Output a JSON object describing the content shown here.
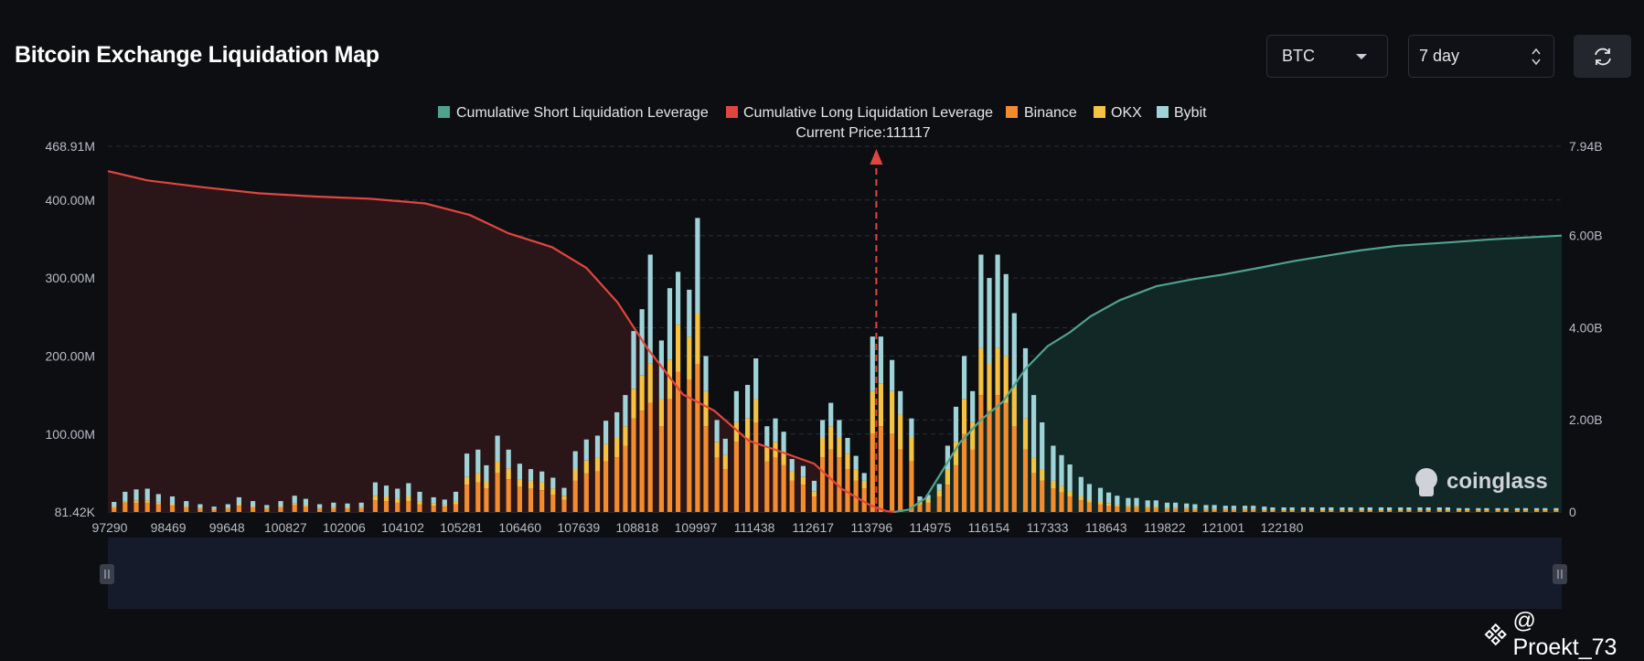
{
  "header": {
    "title": "Bitcoin Exchange Liquidation Map",
    "asset_select": "BTC",
    "period_select": "7 day"
  },
  "watermark": {
    "handle": "@ Proekt_73"
  },
  "colors": {
    "short": "#4fa38e",
    "long": "#e0463e",
    "binance": "#f28c2e",
    "okx": "#f5c242",
    "bybit": "#9fd3d8",
    "background": "#0c0e12"
  },
  "chart_data": {
    "type": "bar",
    "legend": [
      "Cumulative Short Liquidation Leverage",
      "Cumulative Long Liquidation Leverage",
      "Binance",
      "OKX",
      "Bybit"
    ],
    "legend_position": "top-center",
    "current_price_label": "Current Price:111117",
    "current_price": 111117,
    "brand": "coinglass",
    "y_left_ticks": [
      "468.91M",
      "400.00M",
      "300.00M",
      "200.00M",
      "100.00M",
      "81.42K"
    ],
    "y_left_range": [
      0.08142,
      468.91
    ],
    "y_right_ticks": [
      "7.94B",
      "6.00B",
      "4.00B",
      "2.00B",
      "0"
    ],
    "y_right_range": [
      0,
      7.94
    ],
    "x_tick_labels": [
      "97290",
      "98469",
      "99648",
      "100827",
      "102006",
      "104102",
      "105281",
      "106460",
      "107639",
      "108818",
      "109997",
      "111438",
      "112617",
      "113796",
      "114975",
      "116154",
      "117333",
      "118643",
      "119822",
      "121001",
      "122180"
    ],
    "x_range": [
      97290,
      123450
    ],
    "bar_units": "M",
    "bars": [
      [
        97400,
        5,
        2,
        6
      ],
      [
        97600,
        12,
        2,
        12
      ],
      [
        97800,
        12,
        3,
        14
      ],
      [
        98000,
        12,
        3,
        15
      ],
      [
        98200,
        10,
        2,
        11
      ],
      [
        98450,
        8,
        2,
        10
      ],
      [
        98700,
        6,
        1,
        7
      ],
      [
        98950,
        4,
        1,
        5
      ],
      [
        99200,
        3,
        1,
        3
      ],
      [
        99450,
        4,
        1,
        5
      ],
      [
        99650,
        8,
        2,
        9
      ],
      [
        99900,
        6,
        1,
        7
      ],
      [
        100150,
        4,
        1,
        4
      ],
      [
        100400,
        6,
        1,
        7
      ],
      [
        100650,
        9,
        2,
        10
      ],
      [
        100850,
        7,
        2,
        8
      ],
      [
        101100,
        4,
        1,
        5
      ],
      [
        101350,
        5,
        1,
        6
      ],
      [
        101600,
        5,
        1,
        5
      ],
      [
        101850,
        5,
        1,
        6
      ],
      [
        102100,
        15,
        6,
        17
      ],
      [
        102300,
        14,
        6,
        14
      ],
      [
        102500,
        12,
        5,
        13
      ],
      [
        102700,
        14,
        6,
        17
      ],
      [
        102900,
        10,
        4,
        12
      ],
      [
        103150,
        8,
        3,
        8
      ],
      [
        103350,
        7,
        2,
        7
      ],
      [
        103550,
        10,
        4,
        12
      ],
      [
        103750,
        35,
        10,
        30
      ],
      [
        103950,
        38,
        12,
        30
      ],
      [
        104100,
        30,
        10,
        20
      ],
      [
        104300,
        50,
        15,
        33
      ],
      [
        104500,
        42,
        14,
        24
      ],
      [
        104700,
        32,
        10,
        20
      ],
      [
        104900,
        30,
        10,
        15
      ],
      [
        105100,
        28,
        10,
        14
      ],
      [
        105300,
        22,
        8,
        14
      ],
      [
        105500,
        16,
        5,
        10
      ],
      [
        105700,
        40,
        14,
        24
      ],
      [
        105900,
        50,
        16,
        27
      ],
      [
        106100,
        52,
        18,
        28
      ],
      [
        106250,
        65,
        22,
        30
      ],
      [
        106450,
        70,
        25,
        33
      ],
      [
        106600,
        85,
        25,
        40
      ],
      [
        106750,
        120,
        38,
        74
      ],
      [
        106900,
        130,
        45,
        85
      ],
      [
        107050,
        140,
        50,
        140
      ],
      [
        107250,
        110,
        35,
        75
      ],
      [
        107400,
        145,
        50,
        92
      ],
      [
        107550,
        180,
        60,
        68
      ],
      [
        107750,
        170,
        55,
        60
      ],
      [
        107900,
        190,
        65,
        122
      ],
      [
        108050,
        110,
        45,
        45
      ],
      [
        108250,
        70,
        20,
        28
      ],
      [
        108400,
        55,
        18,
        21
      ],
      [
        108600,
        90,
        25,
        40
      ],
      [
        108800,
        95,
        25,
        43
      ],
      [
        108950,
        115,
        30,
        52
      ],
      [
        109150,
        65,
        18,
        27
      ],
      [
        109300,
        70,
        20,
        30
      ],
      [
        109450,
        60,
        18,
        25
      ],
      [
        109600,
        40,
        12,
        16
      ],
      [
        109800,
        35,
        10,
        14
      ],
      [
        110000,
        20,
        6,
        14
      ],
      [
        110150,
        70,
        25,
        23
      ],
      [
        110300,
        80,
        30,
        30
      ],
      [
        110450,
        70,
        25,
        23
      ],
      [
        110600,
        55,
        20,
        20
      ],
      [
        110750,
        40,
        15,
        17
      ],
      [
        110900,
        30,
        10,
        10
      ],
      [
        111050,
        100,
        55,
        70
      ],
      [
        111200,
        110,
        55,
        60
      ],
      [
        111400,
        100,
        55,
        40
      ],
      [
        111550,
        80,
        45,
        30
      ],
      [
        111750,
        65,
        30,
        25
      ],
      [
        111900,
        10,
        5,
        5
      ],
      [
        112050,
        12,
        5,
        5
      ],
      [
        112250,
        20,
        8,
        8
      ],
      [
        112400,
        35,
        20,
        30
      ],
      [
        112550,
        60,
        30,
        45
      ],
      [
        112700,
        100,
        45,
        55
      ],
      [
        112850,
        80,
        35,
        40
      ],
      [
        113000,
        150,
        60,
        120
      ],
      [
        113150,
        130,
        60,
        110
      ],
      [
        113300,
        150,
        60,
        120
      ],
      [
        113450,
        140,
        60,
        105
      ],
      [
        113600,
        110,
        50,
        95
      ],
      [
        113800,
        80,
        40,
        90
      ],
      [
        113950,
        50,
        20,
        80
      ],
      [
        114100,
        40,
        15,
        60
      ],
      [
        114300,
        30,
        10,
        45
      ],
      [
        114450,
        25,
        8,
        40
      ],
      [
        114600,
        20,
        6,
        35
      ],
      [
        114800,
        15,
        5,
        25
      ],
      [
        114950,
        12,
        4,
        20
      ],
      [
        115150,
        10,
        3,
        18
      ],
      [
        115300,
        8,
        3,
        14
      ],
      [
        115450,
        7,
        2,
        12
      ],
      [
        115650,
        6,
        2,
        10
      ],
      [
        115800,
        6,
        2,
        10
      ],
      [
        116000,
        5,
        2,
        8
      ],
      [
        116150,
        5,
        2,
        8
      ],
      [
        116350,
        4,
        1,
        7
      ],
      [
        116500,
        4,
        1,
        7
      ],
      [
        116700,
        4,
        1,
        6
      ],
      [
        116850,
        3,
        1,
        6
      ],
      [
        117050,
        3,
        1,
        5
      ],
      [
        117200,
        3,
        1,
        5
      ],
      [
        117400,
        3,
        1,
        4
      ],
      [
        117550,
        3,
        1,
        4
      ],
      [
        117750,
        3,
        1,
        4
      ],
      [
        117900,
        3,
        1,
        4
      ],
      [
        118100,
        2,
        1,
        4
      ],
      [
        118250,
        2,
        1,
        3
      ],
      [
        118450,
        2,
        1,
        3
      ],
      [
        118600,
        2,
        1,
        3
      ],
      [
        118800,
        2,
        1,
        3
      ],
      [
        118950,
        2,
        1,
        3
      ],
      [
        119150,
        2,
        1,
        3
      ],
      [
        119300,
        2,
        1,
        3
      ],
      [
        119500,
        2,
        1,
        3
      ],
      [
        119650,
        2,
        1,
        3
      ],
      [
        119850,
        2,
        1,
        3
      ],
      [
        120000,
        2,
        1,
        3
      ],
      [
        120200,
        2,
        1,
        3
      ],
      [
        120350,
        2,
        1,
        3
      ],
      [
        120550,
        2,
        1,
        3
      ],
      [
        120700,
        2,
        1,
        3
      ],
      [
        120900,
        2,
        1,
        3
      ],
      [
        121050,
        2,
        1,
        3
      ],
      [
        121250,
        2,
        1,
        3
      ],
      [
        121400,
        2,
        1,
        3
      ],
      [
        121600,
        2,
        1,
        2
      ],
      [
        121750,
        2,
        1,
        2
      ],
      [
        121950,
        2,
        1,
        2
      ],
      [
        122100,
        2,
        1,
        2
      ],
      [
        122300,
        2,
        1,
        2
      ],
      [
        122450,
        2,
        1,
        2
      ],
      [
        122650,
        2,
        1,
        2
      ],
      [
        122800,
        2,
        1,
        2
      ],
      [
        123000,
        2,
        1,
        2
      ],
      [
        123150,
        2,
        1,
        2
      ],
      [
        123350,
        2,
        1,
        2
      ]
    ],
    "cumulative_long": {
      "units": "B",
      "points": [
        [
          97290,
          7.4
        ],
        [
          98000,
          7.2
        ],
        [
          99000,
          7.05
        ],
        [
          100000,
          6.92
        ],
        [
          101000,
          6.85
        ],
        [
          102006,
          6.8
        ],
        [
          103000,
          6.7
        ],
        [
          103800,
          6.45
        ],
        [
          104500,
          6.05
        ],
        [
          105281,
          5.75
        ],
        [
          105900,
          5.3
        ],
        [
          106460,
          4.55
        ],
        [
          107000,
          3.55
        ],
        [
          107639,
          2.55
        ],
        [
          108200,
          2.2
        ],
        [
          108818,
          1.55
        ],
        [
          109300,
          1.35
        ],
        [
          109997,
          1.05
        ],
        [
          110500,
          0.5
        ],
        [
          111000,
          0.15
        ],
        [
          111300,
          0.02
        ],
        [
          111438,
          0
        ]
      ]
    },
    "cumulative_short": {
      "units": "B",
      "points": [
        [
          111438,
          0
        ],
        [
          111700,
          0.05
        ],
        [
          112000,
          0.3
        ],
        [
          112617,
          1.5
        ],
        [
          113000,
          2.0
        ],
        [
          113400,
          2.4
        ],
        [
          113796,
          3.1
        ],
        [
          114200,
          3.6
        ],
        [
          114600,
          3.9
        ],
        [
          114975,
          4.25
        ],
        [
          115500,
          4.6
        ],
        [
          116154,
          4.9
        ],
        [
          116800,
          5.05
        ],
        [
          117333,
          5.15
        ],
        [
          118000,
          5.3
        ],
        [
          118643,
          5.45
        ],
        [
          119400,
          5.6
        ],
        [
          119822,
          5.68
        ],
        [
          120500,
          5.78
        ],
        [
          121001,
          5.82
        ],
        [
          121500,
          5.86
        ],
        [
          122180,
          5.92
        ],
        [
          123000,
          5.97
        ],
        [
          123450,
          6.0
        ]
      ]
    }
  }
}
